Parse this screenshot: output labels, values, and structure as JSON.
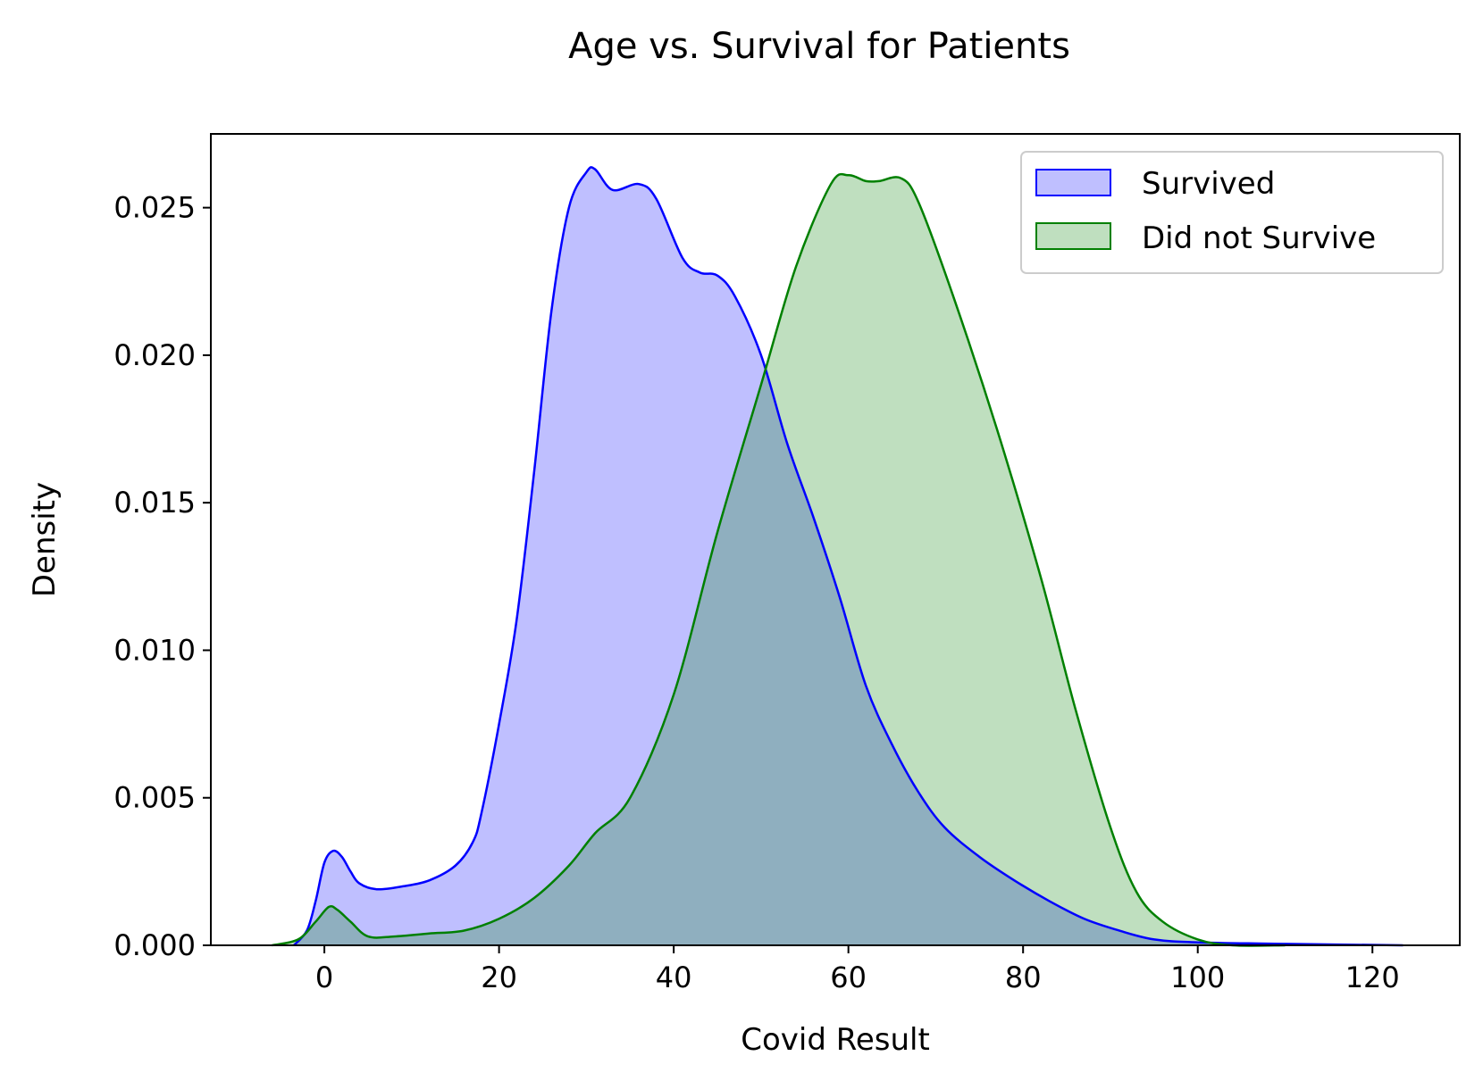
{
  "chart_data": {
    "type": "area",
    "title": "Age vs. Survival for Patients",
    "xlabel": "Covid Result",
    "ylabel": "Density",
    "xlim": [
      -13,
      130
    ],
    "ylim": [
      0,
      0.0275
    ],
    "xticks": [
      0,
      20,
      40,
      60,
      80,
      100,
      120
    ],
    "xtick_labels": [
      "0",
      "20",
      "40",
      "60",
      "80",
      "100",
      "120"
    ],
    "yticks": [
      0,
      0.005,
      0.01,
      0.015,
      0.02,
      0.025
    ],
    "ytick_labels": [
      "0.000",
      "0.005",
      "0.010",
      "0.015",
      "0.020",
      "0.025"
    ],
    "grid": false,
    "legend_position": "upper right",
    "series": [
      {
        "name": "Survived",
        "line_color": "#0000ff",
        "fill_color": "#bfbfff",
        "points": [
          [
            -3.5,
            0.0
          ],
          [
            -2,
            0.0005
          ],
          [
            -1,
            0.0015
          ],
          [
            0,
            0.0028
          ],
          [
            1,
            0.0032
          ],
          [
            2,
            0.003
          ],
          [
            3,
            0.0025
          ],
          [
            4,
            0.0021
          ],
          [
            6,
            0.0019
          ],
          [
            9,
            0.002
          ],
          [
            12,
            0.0022
          ],
          [
            15,
            0.0027
          ],
          [
            17,
            0.0035
          ],
          [
            18,
            0.0045
          ],
          [
            20,
            0.0075
          ],
          [
            22,
            0.011
          ],
          [
            24,
            0.016
          ],
          [
            26,
            0.0215
          ],
          [
            28,
            0.025
          ],
          [
            30,
            0.0262
          ],
          [
            31,
            0.0263
          ],
          [
            33,
            0.0256
          ],
          [
            36,
            0.0258
          ],
          [
            38,
            0.0253
          ],
          [
            41,
            0.0233
          ],
          [
            43,
            0.0228
          ],
          [
            45,
            0.0227
          ],
          [
            47,
            0.022
          ],
          [
            50,
            0.02
          ],
          [
            53,
            0.017
          ],
          [
            56,
            0.0145
          ],
          [
            59,
            0.0118
          ],
          [
            62,
            0.0088
          ],
          [
            65,
            0.0068
          ],
          [
            68,
            0.0052
          ],
          [
            71,
            0.004
          ],
          [
            75,
            0.003
          ],
          [
            79,
            0.0022
          ],
          [
            83,
            0.0015
          ],
          [
            87,
            0.0009
          ],
          [
            91,
            0.0005
          ],
          [
            95,
            0.0002
          ],
          [
            100,
            0.0001
          ],
          [
            110,
            5e-05
          ],
          [
            123.5,
            0.0
          ]
        ]
      },
      {
        "name": "Did not Survive",
        "line_color": "#008000",
        "fill_color": "#bfe0bf",
        "points": [
          [
            -6,
            0.0
          ],
          [
            -3,
            0.0002
          ],
          [
            -1,
            0.0008
          ],
          [
            0.5,
            0.0013
          ],
          [
            1.5,
            0.0012
          ],
          [
            3,
            0.0008
          ],
          [
            5,
            0.0003
          ],
          [
            8,
            0.0003
          ],
          [
            12,
            0.0004
          ],
          [
            16,
            0.0005
          ],
          [
            20,
            0.0009
          ],
          [
            24,
            0.0016
          ],
          [
            28,
            0.0027
          ],
          [
            31,
            0.0038
          ],
          [
            35,
            0.005
          ],
          [
            40,
            0.0085
          ],
          [
            45,
            0.014
          ],
          [
            50,
            0.019
          ],
          [
            54,
            0.023
          ],
          [
            58,
            0.0258
          ],
          [
            60,
            0.0261
          ],
          [
            62,
            0.0259
          ],
          [
            63.5,
            0.0259
          ],
          [
            66,
            0.026
          ],
          [
            68,
            0.0252
          ],
          [
            72,
            0.022
          ],
          [
            77,
            0.0175
          ],
          [
            82,
            0.0125
          ],
          [
            86,
            0.008
          ],
          [
            90,
            0.004
          ],
          [
            93,
            0.0018
          ],
          [
            96,
            0.0008
          ],
          [
            100,
            0.0002
          ],
          [
            104,
            0.0
          ],
          [
            110,
            0.0
          ]
        ]
      }
    ]
  }
}
